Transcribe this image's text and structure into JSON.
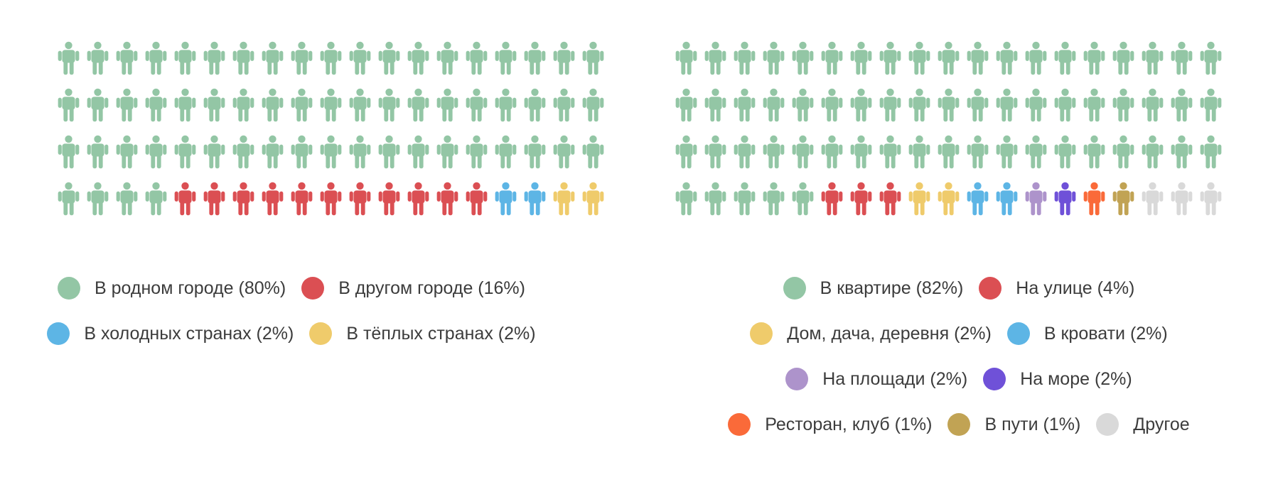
{
  "chart_data": [
    {
      "type": "pictogram",
      "units_total": 76,
      "categories": [
        {
          "label": "В родном городе (80%)",
          "value": 80,
          "units": 61,
          "color": "#93c6a5"
        },
        {
          "label": "В другом городе (16%)",
          "value": 16,
          "units": 11,
          "color": "#db4f53"
        },
        {
          "label": "В холодных странах (2%)",
          "value": 2,
          "units": 2,
          "color": "#5db5e5"
        },
        {
          "label": "В тёплых странах (2%)",
          "value": 2,
          "units": 2,
          "color": "#efcb6b"
        }
      ],
      "legend_rows": [
        [
          0,
          1
        ],
        [
          2,
          3
        ]
      ]
    },
    {
      "type": "pictogram",
      "units_total": 76,
      "categories": [
        {
          "label": "В квартире (82%)",
          "value": 82,
          "units": 62,
          "color": "#93c6a5"
        },
        {
          "label": "На улице (4%)",
          "value": 4,
          "units": 3,
          "color": "#db4f53"
        },
        {
          "label": "Дом, дача, деревня (2%)",
          "value": 2,
          "units": 2,
          "color": "#efcb6b"
        },
        {
          "label": "В кровати (2%)",
          "value": 2,
          "units": 2,
          "color": "#5db5e5"
        },
        {
          "label": "На площади (2%)",
          "value": 2,
          "units": 1,
          "color": "#ad93cb"
        },
        {
          "label": "На море (2%)",
          "value": 2,
          "units": 1,
          "color": "#6f51d8"
        },
        {
          "label": "Ресторан, клуб (1%)",
          "value": 1,
          "units": 1,
          "color": "#fa6a39"
        },
        {
          "label": "В пути (1%)",
          "value": 1,
          "units": 1,
          "color": "#c1a354"
        },
        {
          "label": "Другое",
          "value": null,
          "units": 3,
          "color": "#d9d9d9"
        }
      ],
      "legend_rows": [
        [
          0,
          1
        ],
        [
          2,
          3
        ],
        [
          4,
          5
        ],
        [
          6,
          7,
          8
        ]
      ]
    }
  ]
}
